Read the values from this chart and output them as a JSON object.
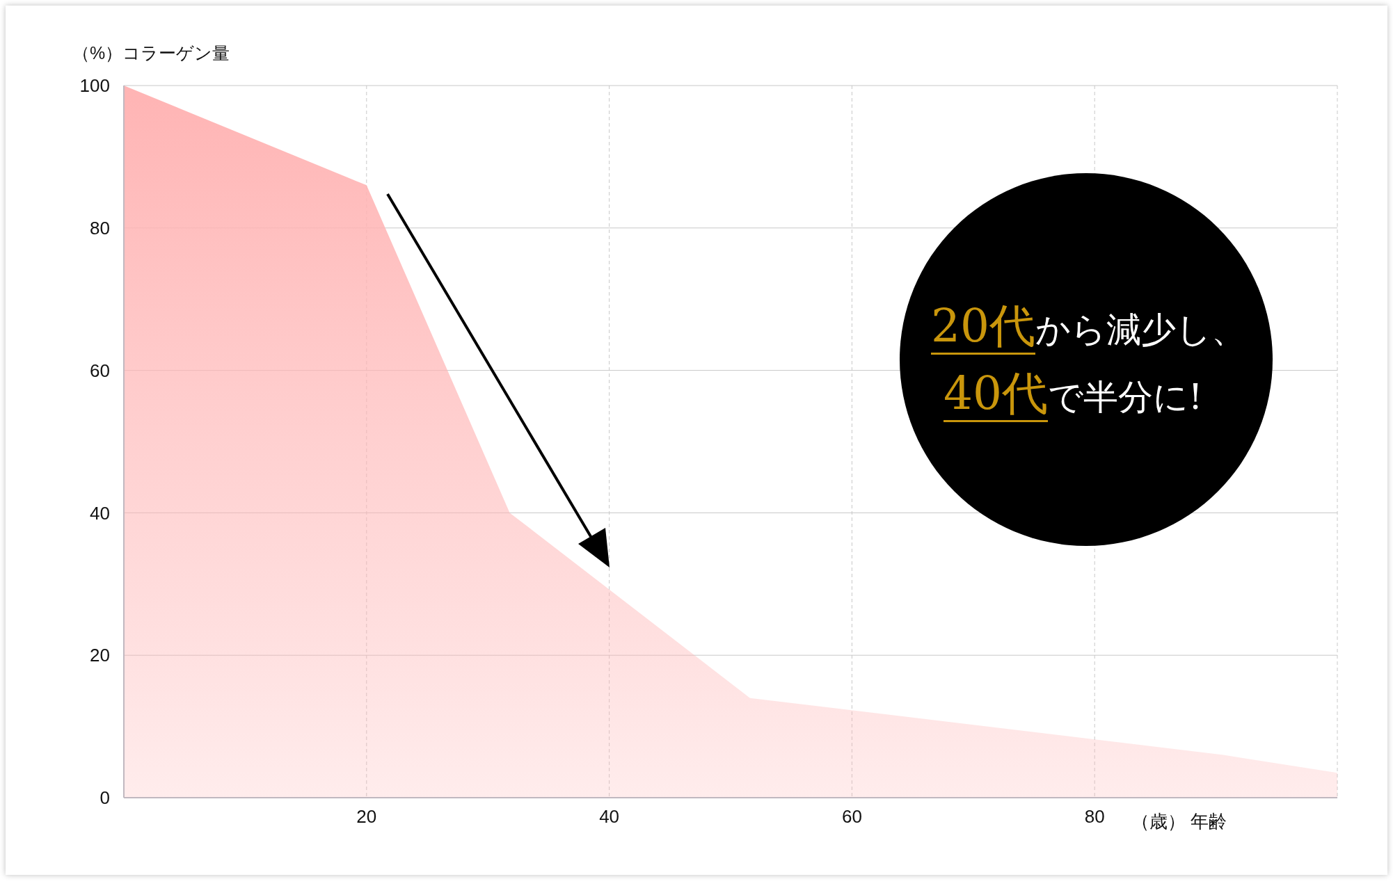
{
  "chart_data": {
    "type": "area",
    "ylabel": "（%）コラーゲン量",
    "xlabel": "（歳） 年齢",
    "x": [
      0,
      20,
      31.8,
      51.6,
      90.6,
      100
    ],
    "values": [
      100,
      86,
      40,
      14,
      6,
      3.5
    ],
    "color": "#ffb4b4",
    "xlim": [
      0,
      100
    ],
    "xticks": [
      20,
      40,
      60,
      80
    ],
    "ylim": [
      0,
      100
    ],
    "yticks": [
      0,
      20,
      40,
      60,
      80,
      100
    ],
    "grid": true,
    "annotations": [
      "20代から減少し、",
      "40代で半分に!"
    ]
  }
}
